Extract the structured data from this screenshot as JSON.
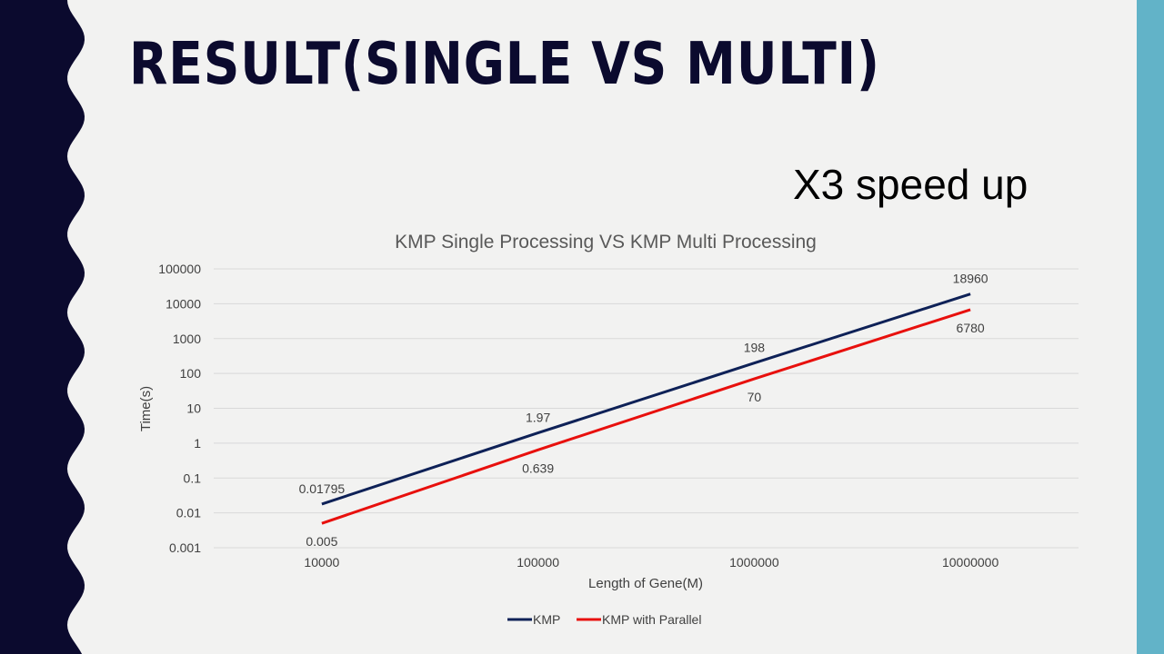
{
  "slide": {
    "title": "RESULT(SINGLE VS MULTI)",
    "speedup_note": "X3 speed up"
  },
  "colors": {
    "left_band": "#0b0a2e",
    "right_band": "#62b3c8",
    "background": "#f2f2f1",
    "title": "#0b0a2e"
  },
  "chart_data": {
    "type": "line",
    "title": "KMP Single Processing VS KMP Multi Processing",
    "xlabel": "Length of Gene(M)",
    "ylabel": "Time(s)",
    "y_scale": "log",
    "ylim": [
      0.001,
      100000
    ],
    "categories": [
      "10000",
      "100000",
      "1000000",
      "10000000"
    ],
    "y_ticks": [
      "100000",
      "10000",
      "1000",
      "100",
      "10",
      "1",
      "0.1",
      "0.01",
      "0.001"
    ],
    "grid": true,
    "legend_position": "bottom",
    "series": [
      {
        "name": "KMP",
        "color": "#0e2157",
        "values": [
          0.01795,
          1.97,
          198,
          18960
        ],
        "labels": [
          "0.01795",
          "1.97",
          "198",
          "18960"
        ]
      },
      {
        "name": "KMP with Parallel",
        "color": "#e8100d",
        "values": [
          0.005,
          0.639,
          70,
          6780
        ],
        "labels": [
          "0.005",
          "0.639",
          "70",
          "6780"
        ]
      }
    ]
  }
}
